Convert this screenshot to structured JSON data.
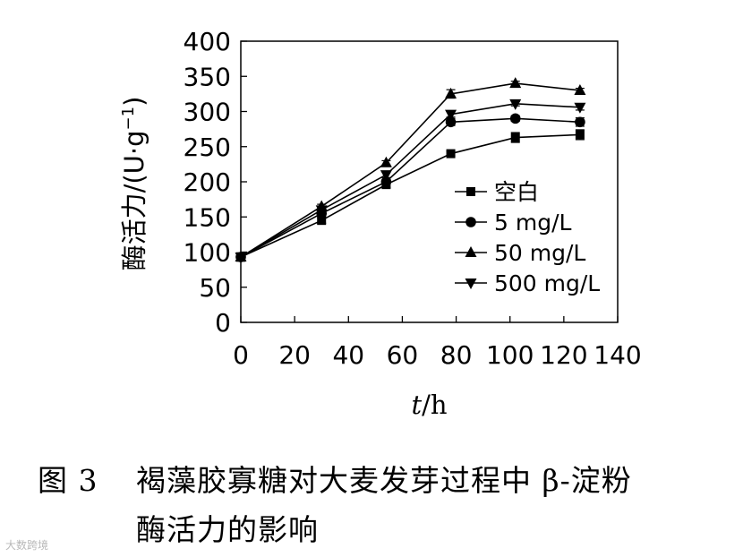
{
  "chart_data": {
    "type": "line",
    "xlabel_italic": "t",
    "xlabel_unit": "/h",
    "ylabel_main": "酶活力/(U·g",
    "ylabel_sup": "−1",
    "ylabel_close": ")",
    "xlim": [
      0,
      140
    ],
    "ylim": [
      0,
      400
    ],
    "xticks": [
      0,
      20,
      40,
      60,
      80,
      100,
      120,
      140
    ],
    "yticks": [
      0,
      50,
      100,
      150,
      200,
      250,
      300,
      350,
      400
    ],
    "legend_placement": "bottom-right",
    "x": [
      0,
      30,
      54,
      78,
      102,
      126
    ],
    "series": [
      {
        "name": "空白",
        "marker": "square",
        "values": [
          93,
          145,
          196,
          240,
          263,
          267
        ],
        "errors": [
          6,
          4,
          4,
          3,
          7,
          7
        ]
      },
      {
        "name": "5 mg/L",
        "marker": "circle",
        "values": [
          93,
          155,
          200,
          285,
          290,
          285
        ],
        "errors": [
          4,
          4,
          3,
          5,
          4,
          6
        ]
      },
      {
        "name": "50 mg/L",
        "marker": "triangle-up",
        "values": [
          93,
          165,
          227,
          325,
          340,
          330
        ],
        "errors": [
          3,
          3,
          3,
          6,
          3,
          3
        ]
      },
      {
        "name": "500 mg/L",
        "marker": "triangle-down",
        "values": [
          93,
          160,
          210,
          296,
          311,
          306
        ],
        "errors": [
          4,
          4,
          4,
          4,
          3,
          4
        ]
      }
    ]
  },
  "caption": {
    "figure_label": "图 3",
    "line1": "褐藻胶寡糖对大麦发芽过程中 β-淀粉",
    "line2": "酶活力的影响"
  },
  "watermark": "大数跨境"
}
